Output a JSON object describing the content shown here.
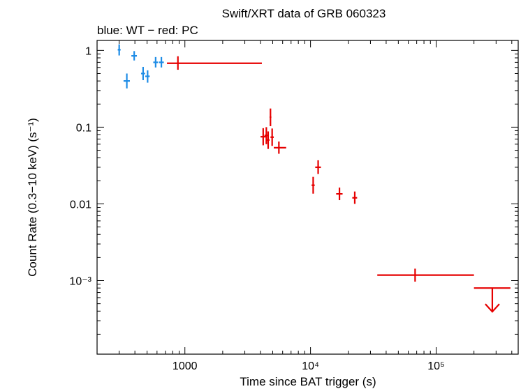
{
  "chart_data": {
    "type": "scatter",
    "title": "Swift/XRT data of GRB 060323",
    "subtitle": "blue: WT − red: PC",
    "xlabel": "Time since BAT trigger (s)",
    "ylabel": "Count Rate (0.3−10 keV) (s⁻¹)",
    "x_scale": "log",
    "y_scale": "log",
    "xlim": [
      200,
      450000
    ],
    "ylim": [
      0.00011,
      1.35
    ],
    "x_ticks": [
      {
        "value": 1000,
        "label": "1000"
      },
      {
        "value": 10000,
        "label": "10⁴"
      },
      {
        "value": 100000,
        "label": "10⁵"
      }
    ],
    "y_ticks": [
      {
        "value": 1,
        "label": "1"
      },
      {
        "value": 0.1,
        "label": "0.1"
      },
      {
        "value": 0.01,
        "label": "0.01"
      },
      {
        "value": 0.001,
        "label": "10⁻³"
      }
    ],
    "series": [
      {
        "color": "#1e8ce6",
        "points": [
          {
            "x": 300,
            "y": 1.02,
            "xlo": 292,
            "xhi": 308,
            "ylo": 0.86,
            "yhi": 1.2
          },
          {
            "x": 345,
            "y": 0.4,
            "xlo": 325,
            "xhi": 365,
            "ylo": 0.32,
            "yhi": 0.5
          },
          {
            "x": 395,
            "y": 0.85,
            "xlo": 375,
            "xhi": 415,
            "ylo": 0.74,
            "yhi": 0.98
          },
          {
            "x": 465,
            "y": 0.5,
            "xlo": 448,
            "xhi": 482,
            "ylo": 0.41,
            "yhi": 0.61
          },
          {
            "x": 505,
            "y": 0.46,
            "xlo": 483,
            "xhi": 525,
            "ylo": 0.38,
            "yhi": 0.55
          },
          {
            "x": 585,
            "y": 0.7,
            "xlo": 560,
            "xhi": 610,
            "ylo": 0.6,
            "yhi": 0.82
          },
          {
            "x": 650,
            "y": 0.7,
            "xlo": 620,
            "xhi": 680,
            "ylo": 0.6,
            "yhi": 0.82
          }
        ]
      },
      {
        "color": "#e60000",
        "points": [
          {
            "x": 880,
            "y": 0.68,
            "xlo": 720,
            "xhi": 4100,
            "ylo": 0.56,
            "yhi": 0.84
          },
          {
            "x": 4200,
            "y": 0.075,
            "xlo": 4000,
            "xhi": 4400,
            "ylo": 0.058,
            "yhi": 0.097
          },
          {
            "x": 4450,
            "y": 0.078,
            "xlo": 4300,
            "xhi": 4600,
            "ylo": 0.06,
            "yhi": 0.1
          },
          {
            "x": 4600,
            "y": 0.068,
            "xlo": 4480,
            "xhi": 4720,
            "ylo": 0.052,
            "yhi": 0.088
          },
          {
            "x": 4800,
            "y": 0.135,
            "xlo": 4720,
            "xhi": 4880,
            "ylo": 0.103,
            "yhi": 0.175
          },
          {
            "x": 4950,
            "y": 0.074,
            "xlo": 4800,
            "xhi": 5100,
            "ylo": 0.057,
            "yhi": 0.096
          },
          {
            "x": 5600,
            "y": 0.054,
            "xlo": 5100,
            "xhi": 6400,
            "ylo": 0.045,
            "yhi": 0.065
          },
          {
            "x": 10500,
            "y": 0.0175,
            "xlo": 10200,
            "xhi": 10800,
            "ylo": 0.0136,
            "yhi": 0.0225
          },
          {
            "x": 11500,
            "y": 0.03,
            "xlo": 10900,
            "xhi": 12100,
            "ylo": 0.0245,
            "yhi": 0.037
          },
          {
            "x": 17000,
            "y": 0.0135,
            "xlo": 16000,
            "xhi": 18000,
            "ylo": 0.0112,
            "yhi": 0.0163
          },
          {
            "x": 22500,
            "y": 0.012,
            "xlo": 21500,
            "xhi": 23500,
            "ylo": 0.01,
            "yhi": 0.0145
          },
          {
            "x": 68000,
            "y": 0.00118,
            "xlo": 34000,
            "xhi": 200000,
            "ylo": 0.00097,
            "yhi": 0.00143
          }
        ]
      },
      {
        "color": "#e60000",
        "upper_limits": [
          {
            "x": 280000,
            "y": 0.0008,
            "xlo": 200000,
            "xhi": 390000
          }
        ]
      }
    ],
    "grid": false,
    "legend": "none"
  }
}
